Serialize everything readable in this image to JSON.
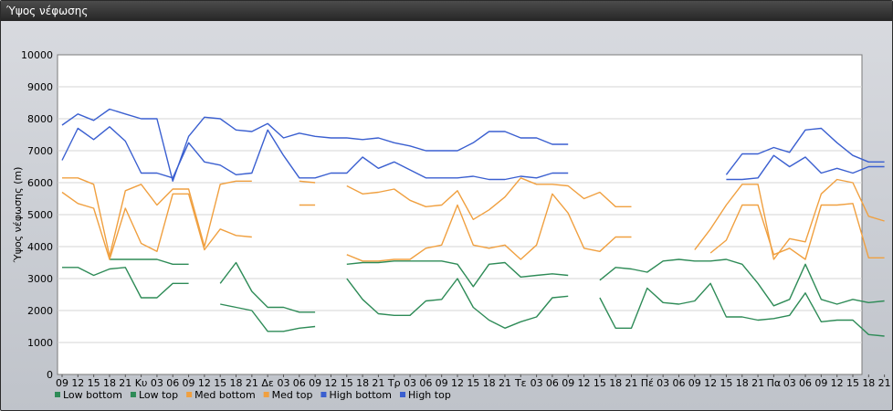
{
  "window": {
    "title": "Ύψος νέφωσης"
  },
  "chart_data": {
    "type": "line",
    "title": "",
    "xlabel": "",
    "ylabel": "Ύψος νέφωσης (m)",
    "ylim": [
      0,
      10000
    ],
    "yticks": [
      0,
      1000,
      2000,
      3000,
      4000,
      5000,
      6000,
      7000,
      8000,
      9000,
      10000
    ],
    "grid": true,
    "legend": "bottom-left",
    "categories": [
      "09",
      "12",
      "15",
      "18",
      "21",
      "Κυ",
      "03",
      "06",
      "09",
      "12",
      "15",
      "18",
      "21",
      "Δε",
      "03",
      "06",
      "09",
      "12",
      "15",
      "18",
      "21",
      "Τρ",
      "03",
      "06",
      "09",
      "12",
      "15",
      "18",
      "21",
      "Τε",
      "03",
      "06",
      "09",
      "12",
      "15",
      "18",
      "21",
      "Πέ",
      "03",
      "06",
      "09",
      "12",
      "15",
      "18",
      "21",
      "Πα",
      "03",
      "06",
      "09",
      "12",
      "15",
      "18",
      "21"
    ],
    "series": [
      {
        "name": "Low bottom",
        "color": "#2e8b57",
        "values": [
          3350,
          3350,
          3100,
          3300,
          3350,
          2400,
          2400,
          2850,
          2850,
          null,
          2850,
          3500,
          2600,
          2100,
          2100,
          1950,
          1950,
          null,
          3000,
          2350,
          1900,
          1850,
          1850,
          2300,
          2350,
          3000,
          2100,
          1700,
          1450,
          1650,
          1800,
          2400,
          2450,
          null,
          2400,
          1450,
          1450,
          2700,
          2250,
          2200,
          2300,
          2850,
          1800,
          1800,
          1700,
          1750,
          1850,
          2550,
          1650,
          1700,
          1700,
          1250,
          1200
        ]
      },
      {
        "name": "Low top",
        "color": "#2e8b57",
        "values": [
          null,
          null,
          null,
          3600,
          3600,
          3600,
          3600,
          3450,
          3450,
          null,
          2200,
          2100,
          2000,
          1350,
          1350,
          1450,
          1500,
          null,
          3450,
          3500,
          3500,
          3550,
          3550,
          3550,
          3550,
          3450,
          2750,
          3450,
          3500,
          3050,
          3100,
          3150,
          3100,
          null,
          2950,
          3350,
          3300,
          3200,
          3550,
          3600,
          3550,
          3550,
          3600,
          3450,
          2850,
          2150,
          2350,
          3450,
          2350,
          2200,
          2350,
          2250,
          2300
        ]
      },
      {
        "name": "Med bottom",
        "color": "#f0a040",
        "values": [
          5700,
          5350,
          5200,
          3600,
          5200,
          4100,
          3850,
          5650,
          5650,
          3900,
          4550,
          4350,
          4300,
          null,
          null,
          5300,
          5300,
          null,
          3750,
          3550,
          3550,
          3600,
          3600,
          3950,
          4050,
          5300,
          4050,
          3950,
          4050,
          3600,
          4050,
          5650,
          5050,
          3950,
          3850,
          4300,
          4300,
          null,
          null,
          null,
          3900,
          4550,
          5300,
          5950,
          5950,
          3600,
          4250,
          4150,
          5650,
          6100,
          6000,
          4950,
          4800
        ]
      },
      {
        "name": "Med top",
        "color": "#f0a040",
        "values": [
          6150,
          6150,
          5950,
          3700,
          5750,
          5950,
          5300,
          5800,
          5800,
          4000,
          5950,
          6050,
          6050,
          null,
          null,
          6050,
          6000,
          null,
          5900,
          5650,
          5700,
          5800,
          5450,
          5250,
          5300,
          5750,
          4850,
          5150,
          5550,
          6150,
          5950,
          5950,
          5900,
          5500,
          5700,
          5250,
          5250,
          null,
          null,
          null,
          null,
          3800,
          4200,
          5300,
          5300,
          3750,
          3950,
          3600,
          5300,
          5300,
          5350,
          3650,
          3650
        ]
      },
      {
        "name": "High bottom",
        "color": "#3a5fd0",
        "values": [
          6700,
          7700,
          7350,
          7750,
          7300,
          6300,
          6300,
          6150,
          7250,
          6650,
          6550,
          6250,
          6300,
          7650,
          6850,
          6150,
          6150,
          6300,
          6300,
          6800,
          6450,
          6650,
          6400,
          6150,
          6150,
          6150,
          6200,
          6100,
          6100,
          6200,
          6150,
          6300,
          6300,
          null,
          null,
          null,
          null,
          null,
          null,
          null,
          null,
          null,
          6100,
          6100,
          6150,
          6850,
          6500,
          6800,
          6300,
          6450,
          6300,
          6500,
          6500
        ]
      },
      {
        "name": "High top",
        "color": "#3a5fd0",
        "values": [
          7800,
          8150,
          7950,
          8300,
          8150,
          8000,
          8000,
          6050,
          7450,
          8050,
          8000,
          7650,
          7600,
          7850,
          7400,
          7550,
          7450,
          7400,
          7400,
          7350,
          7400,
          7250,
          7150,
          7000,
          7000,
          7000,
          7250,
          7600,
          7600,
          7400,
          7400,
          7200,
          7200,
          null,
          null,
          null,
          null,
          null,
          null,
          null,
          null,
          null,
          6250,
          6900,
          6900,
          7100,
          6950,
          7650,
          7700,
          7250,
          6850,
          6650,
          6650
        ]
      }
    ]
  }
}
